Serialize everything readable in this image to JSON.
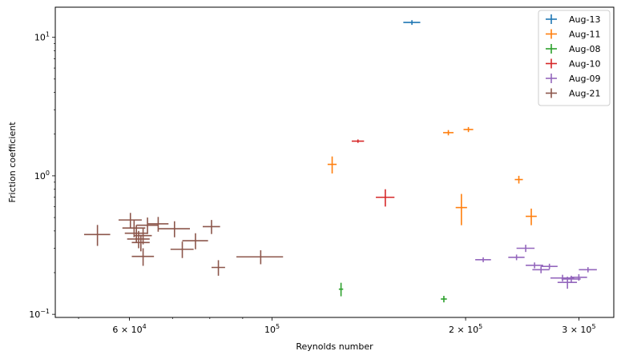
{
  "chart_data": {
    "type": "scatter",
    "title": "",
    "xlabel": "Reynolds number",
    "ylabel": "Friction coefficient",
    "xscale": "log",
    "yscale": "log",
    "xlim": [
      46000,
      340000
    ],
    "ylim": [
      0.095,
      16.5
    ],
    "x_ticks": [
      {
        "value": 60000,
        "base": "6 × 10",
        "exp": "4"
      },
      {
        "value": 100000,
        "base": "10",
        "exp": "5"
      },
      {
        "value": 200000,
        "base": "2 × 10",
        "exp": "5"
      },
      {
        "value": 300000,
        "base": "3 × 10",
        "exp": "5"
      }
    ],
    "y_ticks": [
      {
        "value": 0.1,
        "base": "10",
        "exp": "−1"
      },
      {
        "value": 1,
        "base": "10",
        "exp": "0"
      },
      {
        "value": 10,
        "base": "10",
        "exp": "1"
      }
    ],
    "grid": false,
    "legend_position": "top-right",
    "series": [
      {
        "name": "Aug-13",
        "color": "#1f77b4",
        "points": [
          {
            "x": 165000,
            "y": 12.8,
            "xerr": 5000,
            "yerr": 0.5
          }
        ]
      },
      {
        "name": "Aug-11",
        "color": "#ff7f0e",
        "points": [
          {
            "x": 124000,
            "y": 1.21,
            "xerr": 2000,
            "yerr": 0.17
          },
          {
            "x": 188000,
            "y": 2.05,
            "xerr": 3500,
            "yerr": 0.09
          },
          {
            "x": 202000,
            "y": 2.16,
            "xerr": 3500,
            "yerr": 0.09
          },
          {
            "x": 197000,
            "y": 0.59,
            "xerr": 4000,
            "yerr": 0.15
          },
          {
            "x": 242000,
            "y": 0.94,
            "xerr": 3500,
            "yerr": 0.06
          },
          {
            "x": 253000,
            "y": 0.51,
            "xerr": 5000,
            "yerr": 0.07
          }
        ]
      },
      {
        "name": "Aug-08",
        "color": "#2ca02c",
        "points": [
          {
            "x": 128000,
            "y": 0.152,
            "xerr": 1000,
            "yerr": 0.017
          },
          {
            "x": 185000,
            "y": 0.129,
            "xerr": 2000,
            "yerr": 0.007
          }
        ]
      },
      {
        "name": "Aug-10",
        "color": "#d62728",
        "points": [
          {
            "x": 136000,
            "y": 1.78,
            "xerr": 3000,
            "yerr": 0.05
          },
          {
            "x": 150000,
            "y": 0.7,
            "xerr": 5000,
            "yerr": 0.1
          }
        ]
      },
      {
        "name": "Aug-09",
        "color": "#9467bd",
        "points": [
          {
            "x": 213000,
            "y": 0.248,
            "xerr": 6000,
            "yerr": 0.01
          },
          {
            "x": 240000,
            "y": 0.258,
            "xerr": 7000,
            "yerr": 0.012
          },
          {
            "x": 248000,
            "y": 0.3,
            "xerr": 8000,
            "yerr": 0.018
          },
          {
            "x": 256000,
            "y": 0.226,
            "xerr": 8000,
            "yerr": 0.011
          },
          {
            "x": 262000,
            "y": 0.21,
            "xerr": 8000,
            "yerr": 0.012
          },
          {
            "x": 270000,
            "y": 0.222,
            "xerr": 8000,
            "yerr": 0.01
          },
          {
            "x": 283000,
            "y": 0.183,
            "xerr": 12000,
            "yerr": 0.01
          },
          {
            "x": 288000,
            "y": 0.17,
            "xerr": 10000,
            "yerr": 0.017
          },
          {
            "x": 292000,
            "y": 0.18,
            "xerr": 10000,
            "yerr": 0.01
          },
          {
            "x": 300000,
            "y": 0.185,
            "xerr": 9000,
            "yerr": 0.01
          },
          {
            "x": 310000,
            "y": 0.21,
            "xerr": 10000,
            "yerr": 0.009
          }
        ]
      },
      {
        "name": "Aug-21",
        "color": "#8c564b",
        "points": [
          {
            "x": 53500,
            "y": 0.377,
            "xerr": 2500,
            "yerr": 0.065
          },
          {
            "x": 60200,
            "y": 0.48,
            "xerr": 2500,
            "yerr": 0.06
          },
          {
            "x": 61000,
            "y": 0.42,
            "xerr": 2500,
            "yerr": 0.06
          },
          {
            "x": 61500,
            "y": 0.385,
            "xerr": 2500,
            "yerr": 0.055
          },
          {
            "x": 62000,
            "y": 0.35,
            "xerr": 2500,
            "yerr": 0.05
          },
          {
            "x": 62500,
            "y": 0.33,
            "xerr": 2000,
            "yerr": 0.045
          },
          {
            "x": 63000,
            "y": 0.37,
            "xerr": 2000,
            "yerr": 0.05
          },
          {
            "x": 64000,
            "y": 0.44,
            "xerr": 2500,
            "yerr": 0.06
          },
          {
            "x": 63000,
            "y": 0.262,
            "xerr": 2500,
            "yerr": 0.038
          },
          {
            "x": 66500,
            "y": 0.45,
            "xerr": 2500,
            "yerr": 0.055
          },
          {
            "x": 70500,
            "y": 0.415,
            "xerr": 4000,
            "yerr": 0.055
          },
          {
            "x": 72500,
            "y": 0.295,
            "xerr": 3000,
            "yerr": 0.04
          },
          {
            "x": 76000,
            "y": 0.34,
            "xerr": 3500,
            "yerr": 0.045
          },
          {
            "x": 80500,
            "y": 0.43,
            "xerr": 2500,
            "yerr": 0.05
          },
          {
            "x": 82500,
            "y": 0.218,
            "xerr": 2000,
            "yerr": 0.028
          },
          {
            "x": 96000,
            "y": 0.26,
            "xerr": 8000,
            "yerr": 0.03
          }
        ]
      }
    ]
  }
}
